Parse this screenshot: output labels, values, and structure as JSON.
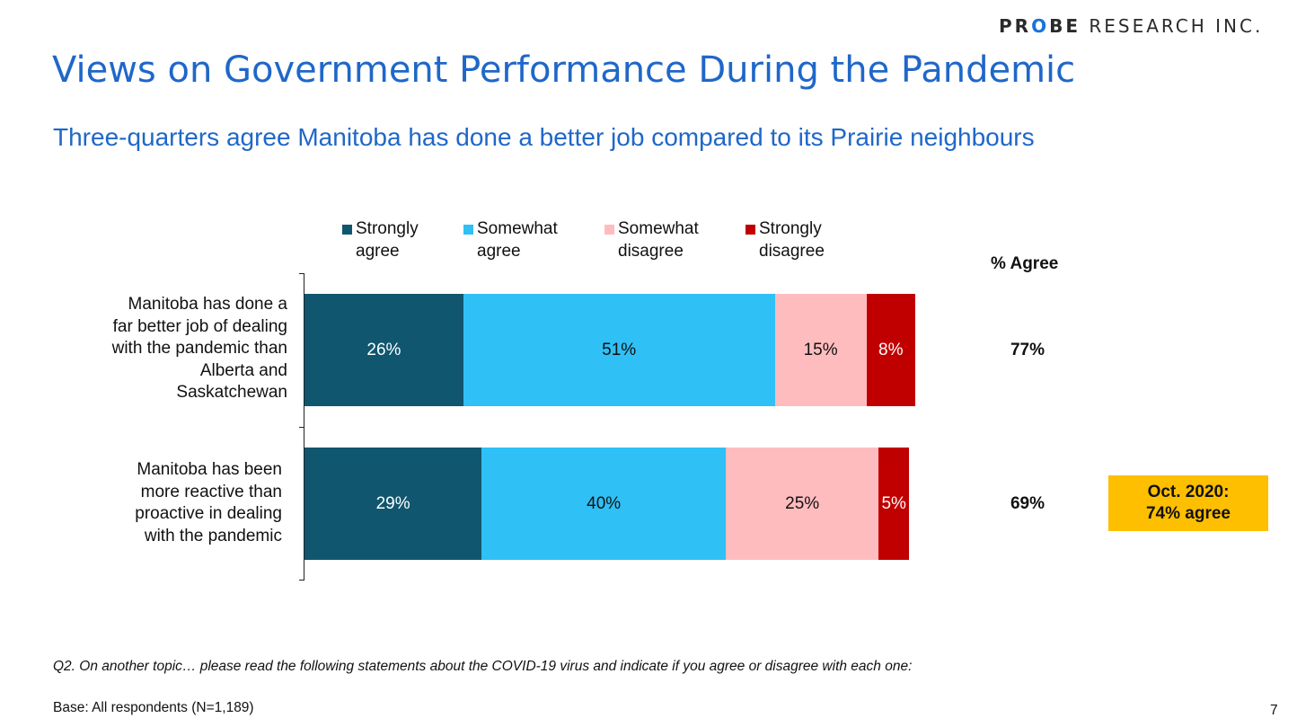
{
  "logo": {
    "bold_part": "PR",
    "o_glyph": "O",
    "bold_end": "BE",
    "regular_part": " RESEARCH INC."
  },
  "title": "Views on Government Performance During the Pandemic",
  "subtitle": "Three-quarters agree Manitoba has done a better job compared to its Prairie neighbours",
  "pct_agree_header": "% Agree",
  "callout": "Oct. 2020:\n74% agree",
  "footer": {
    "question": "Q2. On another topic… please read the following statements about the COVID-19 virus and indicate if you agree or disagree with each one:",
    "base": "Base: All respondents (N=1,189)",
    "page_number": "7"
  },
  "colors": {
    "strongly_agree": "#10566f",
    "somewhat_agree": "#2fc0f5",
    "somewhat_disagree": "#ffbcbf",
    "strongly_disagree": "#c00000",
    "title": "#1f67c9",
    "callout": "#fdbf00"
  },
  "chart_data": {
    "type": "bar",
    "orientation": "horizontal",
    "stacked": true,
    "xlim": [
      0,
      100
    ],
    "categories": [
      "Manitoba has done a\nfar better job of dealing\nwith the pandemic than\nAlberta and\nSaskatchewan",
      "Manitoba has been\nmore reactive than\nproactive in dealing\nwith the pandemic"
    ],
    "series": [
      {
        "name": "Strongly\nagree",
        "color": "#10566f",
        "values": [
          26,
          29
        ],
        "labels": [
          "26%",
          "29%"
        ]
      },
      {
        "name": "Somewhat\nagree",
        "color": "#2fc0f5",
        "values": [
          51,
          40
        ],
        "labels": [
          "51%",
          "40%"
        ]
      },
      {
        "name": "Somewhat\ndisagree",
        "color": "#ffbcbf",
        "values": [
          15,
          25
        ],
        "labels": [
          "15%",
          "25%"
        ]
      },
      {
        "name": "Strongly\ndisagree",
        "color": "#c00000",
        "values": [
          8,
          5
        ],
        "labels": [
          "8%",
          "5%"
        ]
      }
    ],
    "pct_agree": [
      "77%",
      "69%"
    ],
    "legend_position": "top",
    "grid": false
  }
}
